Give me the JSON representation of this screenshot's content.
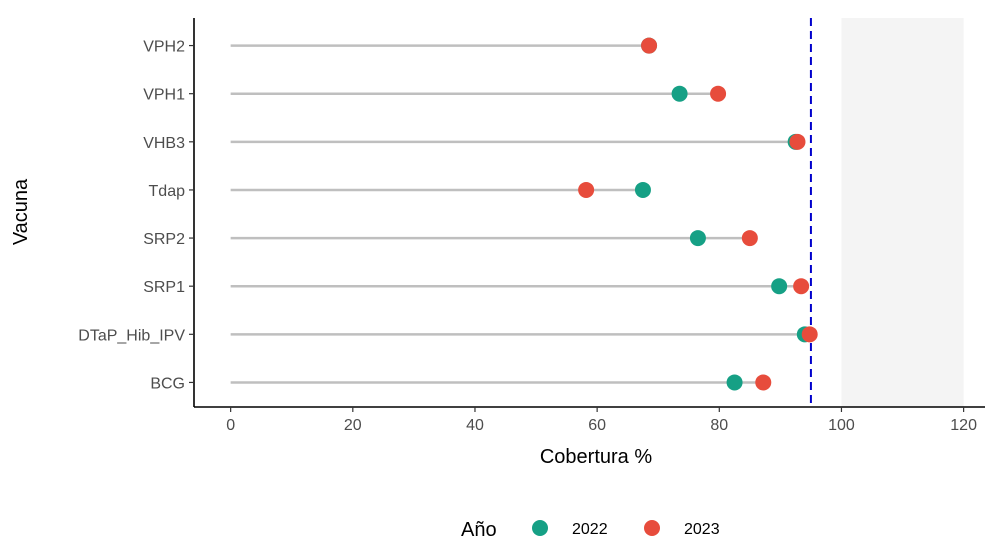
{
  "chart_data": {
    "type": "dumbbell",
    "xlabel": "Cobertura %",
    "ylabel": "Vacuna",
    "xlim": [
      -6,
      123.5
    ],
    "xticks": [
      0,
      20,
      40,
      60,
      80,
      100,
      120
    ],
    "categories": [
      "VPH2",
      "VPH1",
      "VHB3",
      "Tdap",
      "SRP2",
      "SRP1",
      "DTaP_Hib_IPV",
      "BCG"
    ],
    "series": [
      {
        "name": "2022",
        "color": "#16a085",
        "values": [
          68.5,
          73.5,
          92.5,
          67.5,
          76.5,
          89.8,
          94.0,
          82.5
        ]
      },
      {
        "name": "2023",
        "color": "#e74c3c",
        "values": [
          68.5,
          79.8,
          92.8,
          58.2,
          85.0,
          93.4,
          94.8,
          87.2
        ]
      }
    ],
    "segment": {
      "from": 0,
      "color": "#bfbfbf"
    },
    "reference_line": {
      "x": 95,
      "color": "#0000cc",
      "style": "dashed"
    },
    "shaded_band": {
      "from": 100,
      "to": 120,
      "color": "#f4f4f4"
    },
    "legend": {
      "title": "Año",
      "placement": "bottom"
    }
  }
}
